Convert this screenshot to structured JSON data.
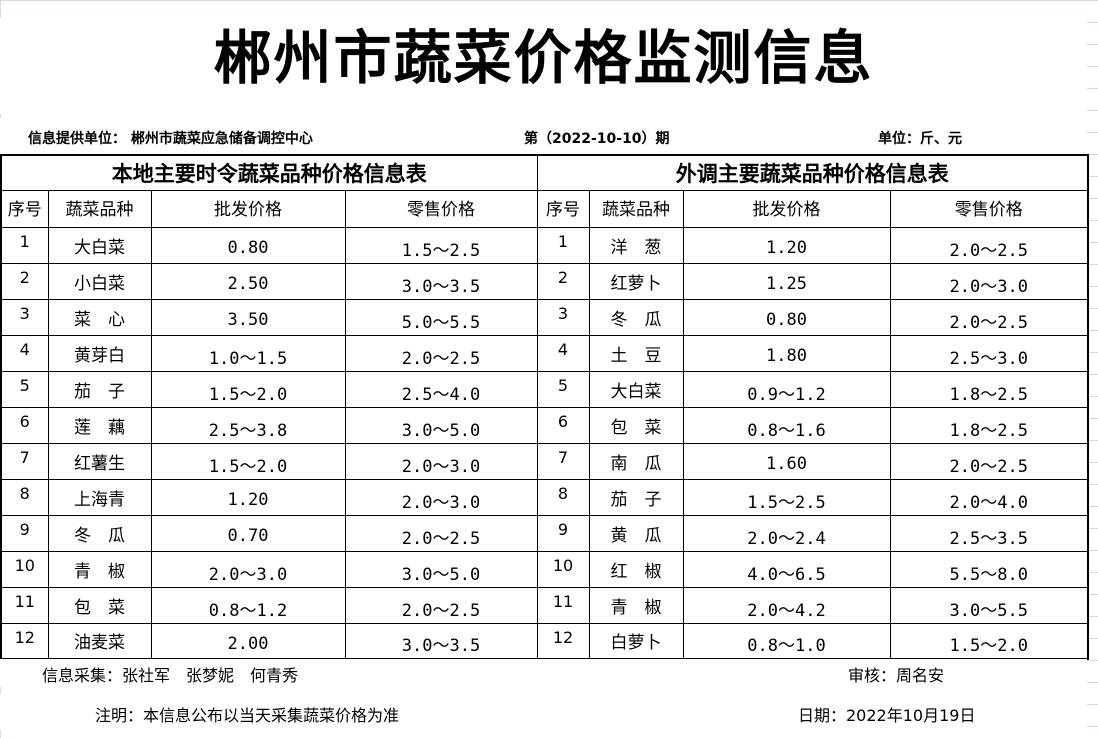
{
  "title": "郴州市蔬菜价格监测信息",
  "info": {
    "provider": "信息提供单位：  郴州市蔬菜应急储备调控中心",
    "issue": "第（2022-10-10）期",
    "unit": "单位：斤、元"
  },
  "local": {
    "title": "本地主要时令蔬菜品种价格信息表",
    "headers": [
      "序号",
      "蔬菜品种",
      "批发价格",
      "零售价格"
    ],
    "rows": [
      [
        "1",
        "大白菜",
        "0.80",
        "1.5～2.5"
      ],
      [
        "2",
        "小白菜",
        "2.50",
        "3.0～3.5"
      ],
      [
        "3",
        "菜　心",
        "3.50",
        "5.0～5.5"
      ],
      [
        "4",
        "黄芽白",
        "1.0～1.5",
        "2.0～2.5"
      ],
      [
        "5",
        "茄　子",
        "1.5～2.0",
        "2.5～4.0"
      ],
      [
        "6",
        "莲　藕",
        "2.5～3.8",
        "3.0～5.0"
      ],
      [
        "7",
        "红薯生",
        "1.5～2.0",
        "2.0～3.0"
      ],
      [
        "8",
        "上海青",
        "1.20",
        "2.0～3.0"
      ],
      [
        "9",
        "冬　瓜",
        "0.70",
        "2.0～2.5"
      ],
      [
        "10",
        "青　椒",
        "2.0～3.0",
        "3.0～5.0"
      ],
      [
        "11",
        "包　菜",
        "0.8～1.2",
        "2.0～2.5"
      ],
      [
        "12",
        "油麦菜",
        "2.00",
        "3.0～3.5"
      ]
    ]
  },
  "imported": {
    "title": "外调主要蔬菜品种价格信息表",
    "headers": [
      "序号",
      "蔬菜品种",
      "批发价格",
      "零售价格"
    ],
    "rows": [
      [
        "1",
        "洋　葱",
        "1.20",
        "2.0～2.5"
      ],
      [
        "2",
        "红萝卜",
        "1.25",
        "2.0～3.0"
      ],
      [
        "3",
        "冬　瓜",
        "0.80",
        "2.0～2.5"
      ],
      [
        "4",
        "土　豆",
        "1.80",
        "2.5～3.0"
      ],
      [
        "5",
        "大白菜",
        "0.9～1.2",
        "1.8～2.5"
      ],
      [
        "6",
        "包　菜",
        "0.8～1.6",
        "1.8～2.5"
      ],
      [
        "7",
        "南　瓜",
        "1.60",
        "2.0～2.5"
      ],
      [
        "8",
        "茄　子",
        "1.5～2.5",
        "2.0～4.0"
      ],
      [
        "9",
        "黄　瓜",
        "2.0～2.4",
        "2.5～3.5"
      ],
      [
        "10",
        "红　椒",
        "4.0～6.5",
        "5.5～8.0"
      ],
      [
        "11",
        "青　椒",
        "2.0～4.2",
        "3.0～5.5"
      ],
      [
        "12",
        "白萝卜",
        "0.8～1.0",
        "1.5～2.0"
      ]
    ]
  },
  "footer": {
    "collectors": "信息采集：张社军　张梦妮　何青秀",
    "reviewer": "审核：周名安",
    "note": "注明：本信息公布以当天采集蔬菜价格为准",
    "date": "日期：2022年10月19日"
  }
}
